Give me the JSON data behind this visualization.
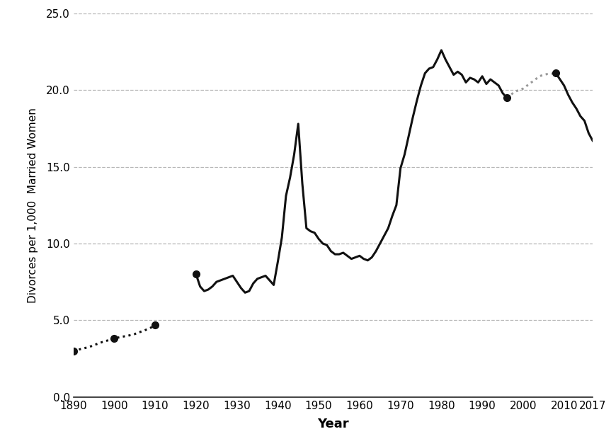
{
  "xlabel": "Year",
  "ylabel": "Divorces per 1,000  Married Women",
  "xlim": [
    1890,
    2017
  ],
  "ylim": [
    0.0,
    25.0
  ],
  "yticks": [
    0.0,
    5.0,
    10.0,
    15.0,
    20.0,
    25.0
  ],
  "xticks": [
    1890,
    1900,
    1910,
    1920,
    1930,
    1940,
    1950,
    1960,
    1970,
    1980,
    1990,
    2000,
    2010,
    2017
  ],
  "background_color": "#ffffff",
  "grid_color": "#aaaaaa",
  "line_color_solid": "#111111",
  "line_color_dotted_black": "#111111",
  "line_color_dotted_gray": "#999999",
  "early_dotted": {
    "years": [
      1890,
      1891,
      1892,
      1893,
      1894,
      1895,
      1896,
      1897,
      1898,
      1899,
      1900,
      1901,
      1902,
      1903,
      1904,
      1905,
      1906,
      1907,
      1908,
      1909,
      1910
    ],
    "values": [
      3.0,
      3.07,
      3.13,
      3.2,
      3.27,
      3.37,
      3.47,
      3.57,
      3.65,
      3.73,
      3.8,
      3.87,
      3.93,
      3.97,
      4.03,
      4.1,
      4.2,
      4.3,
      4.4,
      4.52,
      4.7
    ]
  },
  "solid_main": {
    "years": [
      1920,
      1921,
      1922,
      1923,
      1924,
      1925,
      1926,
      1927,
      1928,
      1929,
      1930,
      1931,
      1932,
      1933,
      1934,
      1935,
      1936,
      1937,
      1938,
      1939,
      1940,
      1941,
      1942,
      1943,
      1944,
      1945,
      1946,
      1947,
      1948,
      1949,
      1950,
      1951,
      1952,
      1953,
      1954,
      1955,
      1956,
      1957,
      1958,
      1959,
      1960,
      1961,
      1962,
      1963,
      1964,
      1965,
      1966,
      1967,
      1968,
      1969,
      1970,
      1971,
      1972,
      1973,
      1974,
      1975,
      1976,
      1977,
      1978,
      1979,
      1980,
      1981,
      1982,
      1983,
      1984,
      1985,
      1986,
      1987,
      1988,
      1989,
      1990,
      1991,
      1992,
      1993,
      1994,
      1995,
      1996
    ],
    "values": [
      8.0,
      7.2,
      6.9,
      7.0,
      7.2,
      7.5,
      7.6,
      7.7,
      7.8,
      7.9,
      7.5,
      7.1,
      6.8,
      6.9,
      7.4,
      7.7,
      7.8,
      7.9,
      7.6,
      7.3,
      8.8,
      10.4,
      13.1,
      14.3,
      15.8,
      17.8,
      13.9,
      11.0,
      10.8,
      10.7,
      10.3,
      10.0,
      9.9,
      9.5,
      9.3,
      9.3,
      9.4,
      9.2,
      9.0,
      9.1,
      9.2,
      9.0,
      8.9,
      9.1,
      9.5,
      10.0,
      10.5,
      11.0,
      11.8,
      12.5,
      14.9,
      15.8,
      17.0,
      18.2,
      19.3,
      20.3,
      21.1,
      21.4,
      21.5,
      22.0,
      22.6,
      22.0,
      21.5,
      21.0,
      21.2,
      21.0,
      20.5,
      20.8,
      20.7,
      20.5,
      20.9,
      20.4,
      20.7,
      20.5,
      20.3,
      19.8,
      19.5
    ]
  },
  "gap_dotted": {
    "years": [
      1996,
      1997,
      1998,
      1999,
      2000,
      2001,
      2002,
      2003,
      2004,
      2005,
      2006,
      2007,
      2008
    ],
    "values": [
      19.5,
      19.7,
      19.9,
      20.0,
      20.1,
      20.3,
      20.5,
      20.7,
      20.9,
      21.0,
      21.05,
      21.07,
      21.1
    ]
  },
  "solid_end": {
    "years": [
      2008,
      2009,
      2010,
      2011,
      2012,
      2013,
      2014,
      2015,
      2016,
      2017
    ],
    "values": [
      21.1,
      20.7,
      20.3,
      19.7,
      19.2,
      18.8,
      18.3,
      18.0,
      17.2,
      16.7
    ]
  },
  "black_dots": [
    {
      "year": 1890,
      "value": 3.0
    },
    {
      "year": 1900,
      "value": 3.8
    },
    {
      "year": 1910,
      "value": 4.7
    },
    {
      "year": 1920,
      "value": 8.0
    },
    {
      "year": 1996,
      "value": 19.5
    },
    {
      "year": 2008,
      "value": 21.1
    }
  ]
}
